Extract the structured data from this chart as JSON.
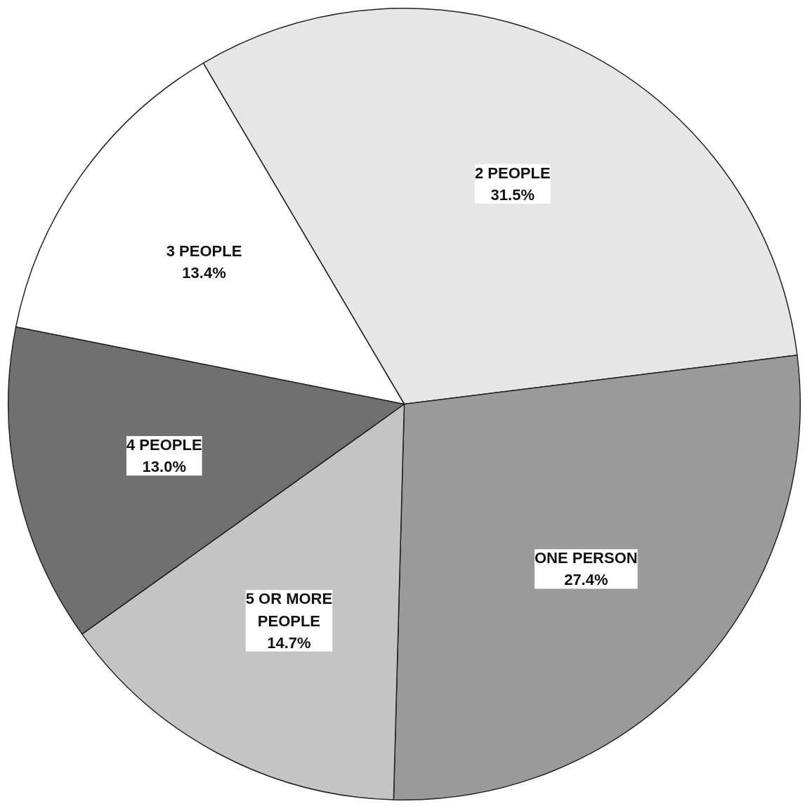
{
  "chart_data": {
    "type": "pie",
    "categories": [
      "2 PEOPLE",
      "ONE PERSON",
      "5 OR MORE PEOPLE",
      "4 PEOPLE",
      "3 PEOPLE"
    ],
    "values": [
      31.5,
      27.4,
      14.7,
      13.0,
      13.4
    ],
    "value_labels": [
      "31.5%",
      "27.4%",
      "14.7%",
      "13.0%",
      "13.4%"
    ],
    "colors": [
      "#e6e6e6",
      "#9a9a9a",
      "#c4c4c4",
      "#707070",
      "#ffffff"
    ]
  }
}
